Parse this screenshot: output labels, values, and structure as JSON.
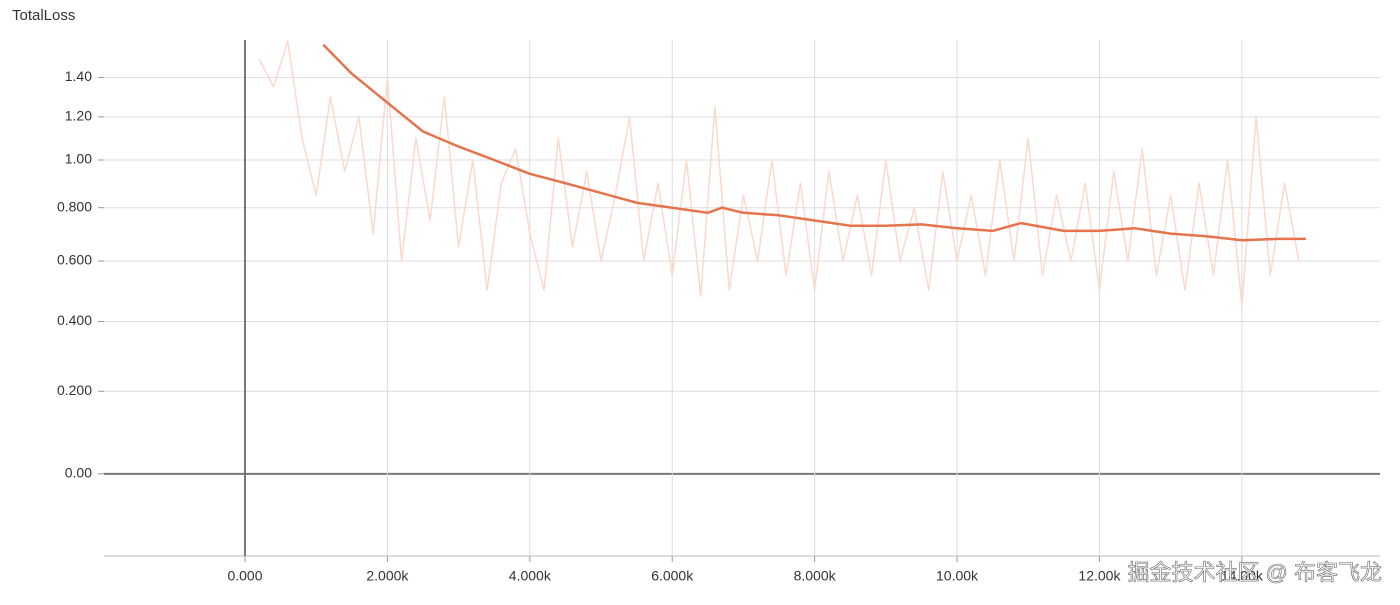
{
  "chart_data": {
    "type": "line",
    "title": "TotalLoss",
    "yscale": "log1p",
    "xlim": [
      -1980,
      15940
    ],
    "ylim": [
      -0.166,
      1.607
    ],
    "xticks": [
      {
        "value": 0,
        "label": "0.000"
      },
      {
        "value": 2000,
        "label": "2.000k"
      },
      {
        "value": 4000,
        "label": "4.000k"
      },
      {
        "value": 6000,
        "label": "6.000k"
      },
      {
        "value": 8000,
        "label": "8.000k"
      },
      {
        "value": 10000,
        "label": "10.00k"
      },
      {
        "value": 12000,
        "label": "12.00k"
      },
      {
        "value": 14000,
        "label": "14.00k"
      }
    ],
    "yticks": [
      {
        "value": 0,
        "label": "0.00"
      },
      {
        "value": 0.2,
        "label": "0.200"
      },
      {
        "value": 0.4,
        "label": "0.400"
      },
      {
        "value": 0.6,
        "label": "0.600"
      },
      {
        "value": 0.8,
        "label": "0.800"
      },
      {
        "value": 1,
        "label": "1.00"
      },
      {
        "value": 1.2,
        "label": "1.20"
      },
      {
        "value": 1.4,
        "label": "1.40"
      }
    ],
    "grid": true,
    "series": [
      {
        "color": "#fbd9cd",
        "x": [
          200,
          400,
          600,
          800,
          1000,
          1200,
          1400,
          1600,
          1800,
          2000,
          2200,
          2400,
          2600,
          2800,
          3000,
          3200,
          3400,
          3600,
          3800,
          4000,
          4200,
          4400,
          4600,
          4800,
          5000,
          5200,
          5400,
          5600,
          5800,
          6000,
          6200,
          6400,
          6600,
          6800,
          7000,
          7200,
          7400,
          7600,
          7800,
          8000,
          8200,
          8400,
          8600,
          8800,
          9000,
          9200,
          9400,
          9600,
          9800,
          10000,
          10200,
          10400,
          10600,
          10800,
          11000,
          11200,
          11400,
          11600,
          11800,
          12000,
          12200,
          12400,
          12600,
          12800,
          13000,
          13200,
          13400,
          13600,
          13800,
          14000,
          14200,
          14400,
          14600,
          14800
        ],
        "values": [
          1.5,
          1.35,
          1.6,
          1.1,
          0.85,
          1.3,
          0.95,
          1.2,
          0.7,
          1.4,
          0.6,
          1.1,
          0.75,
          1.3,
          0.65,
          1.0,
          0.5,
          0.9,
          1.05,
          0.7,
          0.5,
          1.1,
          0.65,
          0.95,
          0.6,
          0.85,
          1.2,
          0.6,
          0.9,
          0.55,
          1.0,
          0.48,
          1.25,
          0.5,
          0.85,
          0.6,
          1.0,
          0.55,
          0.9,
          0.5,
          0.95,
          0.6,
          0.85,
          0.55,
          1.0,
          0.6,
          0.8,
          0.5,
          0.95,
          0.6,
          0.85,
          0.55,
          1.0,
          0.6,
          1.1,
          0.55,
          0.85,
          0.6,
          0.9,
          0.5,
          0.95,
          0.6,
          1.05,
          0.55,
          0.85,
          0.5,
          0.9,
          0.55,
          1.0,
          0.45,
          1.2,
          0.55,
          0.9,
          0.6
        ]
      },
      {
        "color": "#e5734c",
        "x": [
          1100,
          1500,
          2000,
          2500,
          3000,
          3500,
          4000,
          4500,
          5000,
          5500,
          6000,
          6500,
          6700,
          7000,
          7500,
          8000,
          8500,
          9000,
          9500,
          10000,
          10500,
          10900,
          11500,
          12000,
          12500,
          13000,
          13500,
          14000,
          14500,
          14900
        ],
        "values": [
          1.58,
          1.42,
          1.27,
          1.13,
          1.06,
          1.0,
          0.94,
          0.9,
          0.86,
          0.82,
          0.8,
          0.78,
          0.8,
          0.78,
          0.77,
          0.75,
          0.73,
          0.73,
          0.735,
          0.72,
          0.71,
          0.74,
          0.71,
          0.71,
          0.72,
          0.7,
          0.69,
          0.675,
          0.68,
          0.68
        ]
      }
    ],
    "annotation": "掘金技术社区 @ 布客飞龙"
  }
}
